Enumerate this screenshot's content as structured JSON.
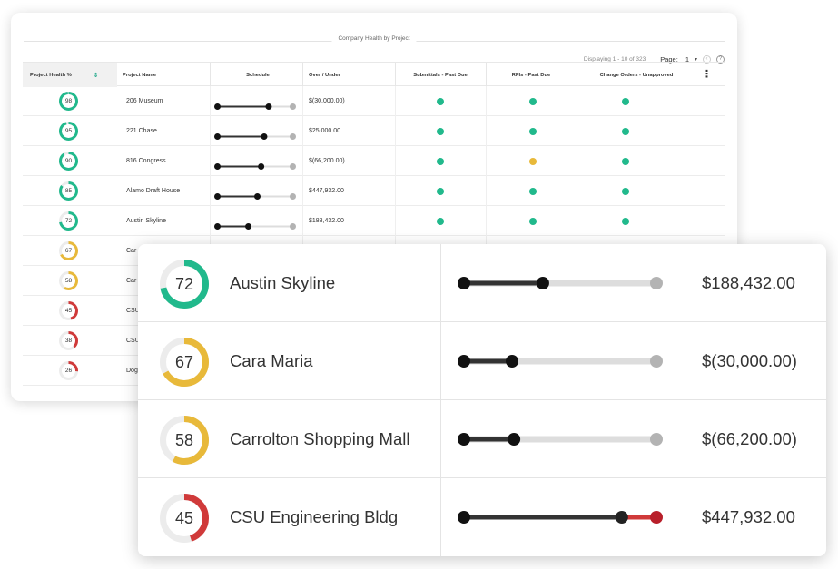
{
  "colors": {
    "good": "#21b98c",
    "warn": "#e8b93a",
    "bad": "#d03a3a",
    "track": "#ececec",
    "bar": "#333333",
    "bar_rest": "#dddddd",
    "end_dot": "#b3b3b3"
  },
  "back_table": {
    "title": "Company Health by Project",
    "pager": {
      "display_text": "Displaying 1 - 10 of 323",
      "page_label": "Page:",
      "page_value": "1",
      "caret_icon": "caret-down-icon",
      "first_icon": "nav-back-icon",
      "help_icon": "help-icon"
    },
    "columns": [
      "Project Health %",
      "Project Name",
      "Schedule",
      "Over / Under",
      "Submittals - Past Due",
      "RFIs - Past Due",
      "Change Orders - Unapproved"
    ],
    "menu_icon": "more-vertical-icon",
    "rows": [
      {
        "health": 98,
        "status": "good",
        "name": "206 Museum",
        "schedule": 0.68,
        "amount": "$(30,000.00)",
        "submittals": "good",
        "rfis": "good",
        "change_orders": "good"
      },
      {
        "health": 95,
        "status": "good",
        "name": "221 Chase",
        "schedule": 0.62,
        "amount": "$25,000.00",
        "submittals": "good",
        "rfis": "good",
        "change_orders": "good"
      },
      {
        "health": 90,
        "status": "good",
        "name": "816 Congress",
        "schedule": 0.58,
        "amount": "$(66,200.00)",
        "submittals": "good",
        "rfis": "warn",
        "change_orders": "good"
      },
      {
        "health": 85,
        "status": "good",
        "name": "Alamo Draft House",
        "schedule": 0.53,
        "amount": "$447,932.00",
        "submittals": "good",
        "rfis": "good",
        "change_orders": "good"
      },
      {
        "health": 72,
        "status": "good",
        "name": "Austin Skyline",
        "schedule": 0.41,
        "amount": "$188,432.00",
        "submittals": "good",
        "rfis": "good",
        "change_orders": "good"
      },
      {
        "health": 67,
        "status": "warn",
        "name": "Car",
        "schedule": null
      },
      {
        "health": 58,
        "status": "warn",
        "name": "Car",
        "schedule": null
      },
      {
        "health": 45,
        "status": "bad",
        "name": "CSU",
        "schedule": null
      },
      {
        "health": 38,
        "status": "bad",
        "name": "CSU",
        "schedule": null
      },
      {
        "health": 26,
        "status": "bad",
        "name": "Dog",
        "schedule": null
      }
    ]
  },
  "front_panel": {
    "rows": [
      {
        "health": 72,
        "status": "good",
        "name": "Austin Skyline",
        "progress": 0.41,
        "over": false,
        "amount": "$188,432.00"
      },
      {
        "health": 67,
        "status": "warn",
        "name": "Cara Maria",
        "progress": 0.25,
        "over": false,
        "amount": "$(30,000.00)"
      },
      {
        "health": 58,
        "status": "warn",
        "name": "Carrolton Shopping Mall",
        "progress": 0.26,
        "over": false,
        "amount": "$(66,200.00)"
      },
      {
        "health": 45,
        "status": "bad",
        "name": "CSU Engineering Bldg",
        "progress": 0.82,
        "over": true,
        "amount": "$447,932.00"
      }
    ]
  }
}
